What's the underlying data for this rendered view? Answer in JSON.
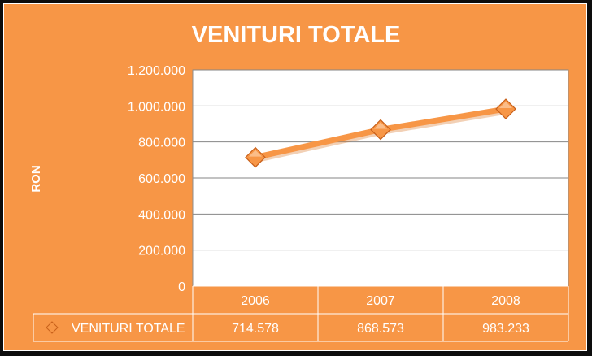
{
  "chart_data": {
    "type": "line",
    "title": "VENITURI TOTALE",
    "ylabel": "RON",
    "xlabel": "",
    "categories": [
      "2006",
      "2007",
      "2008"
    ],
    "series": [
      {
        "name": "VENITURI TOTALE",
        "values": [
          714578,
          868573,
          983233
        ],
        "labels": [
          "714.578",
          "868.573",
          "983.233"
        ],
        "color": "#f79646",
        "marker": "diamond"
      }
    ],
    "ylim": [
      0,
      1200000
    ],
    "yticks": [
      "0",
      "200.000",
      "400.000",
      "600.000",
      "800.000",
      "1.000.000",
      "1.200.000"
    ],
    "grid": true,
    "legend": "data-table",
    "colors": {
      "background": "#f79646",
      "plot": "#ffffff",
      "text": "#ffffff",
      "line": "#f79646"
    }
  }
}
